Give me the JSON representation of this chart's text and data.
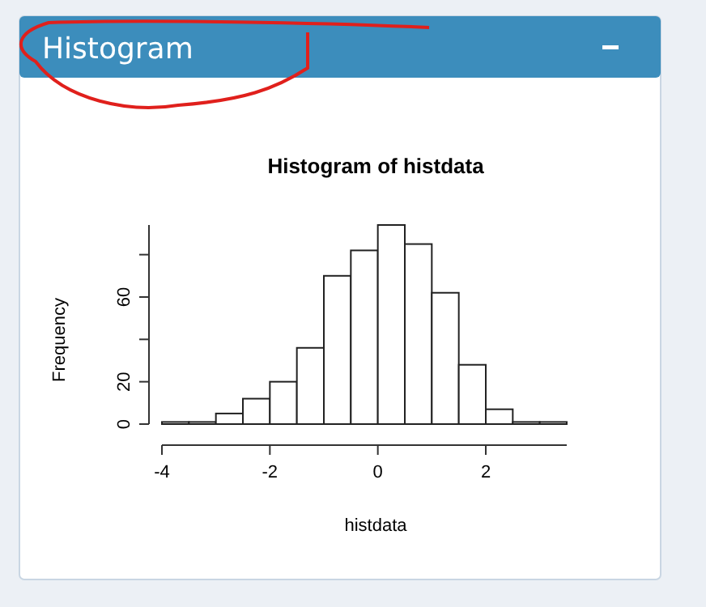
{
  "chart_data": {
    "type": "histogram",
    "title": "Histogram of histdata",
    "xlabel": "histdata",
    "ylabel": "Frequency",
    "annotations": [
      "Histogram"
    ],
    "bins": [
      -4,
      -3.5,
      -3,
      -2.5,
      -2,
      -1.5,
      -1,
      -0.5,
      0,
      0.5,
      1,
      1.5,
      2,
      2.5,
      3,
      3.5
    ],
    "values": [
      1,
      1,
      5,
      12,
      20,
      36,
      70,
      82,
      94,
      85,
      62,
      28,
      7,
      1,
      1
    ],
    "color": "#ffffff",
    "xlim": [
      -4,
      3.5
    ],
    "xticks": [
      -4,
      -2,
      0,
      2
    ],
    "ylim": [
      0,
      94
    ],
    "yticks": [
      0,
      20,
      {
        "value": 40,
        "label": null
      },
      60,
      {
        "value": 80,
        "label": null
      }
    ],
    "grid": false
  }
}
